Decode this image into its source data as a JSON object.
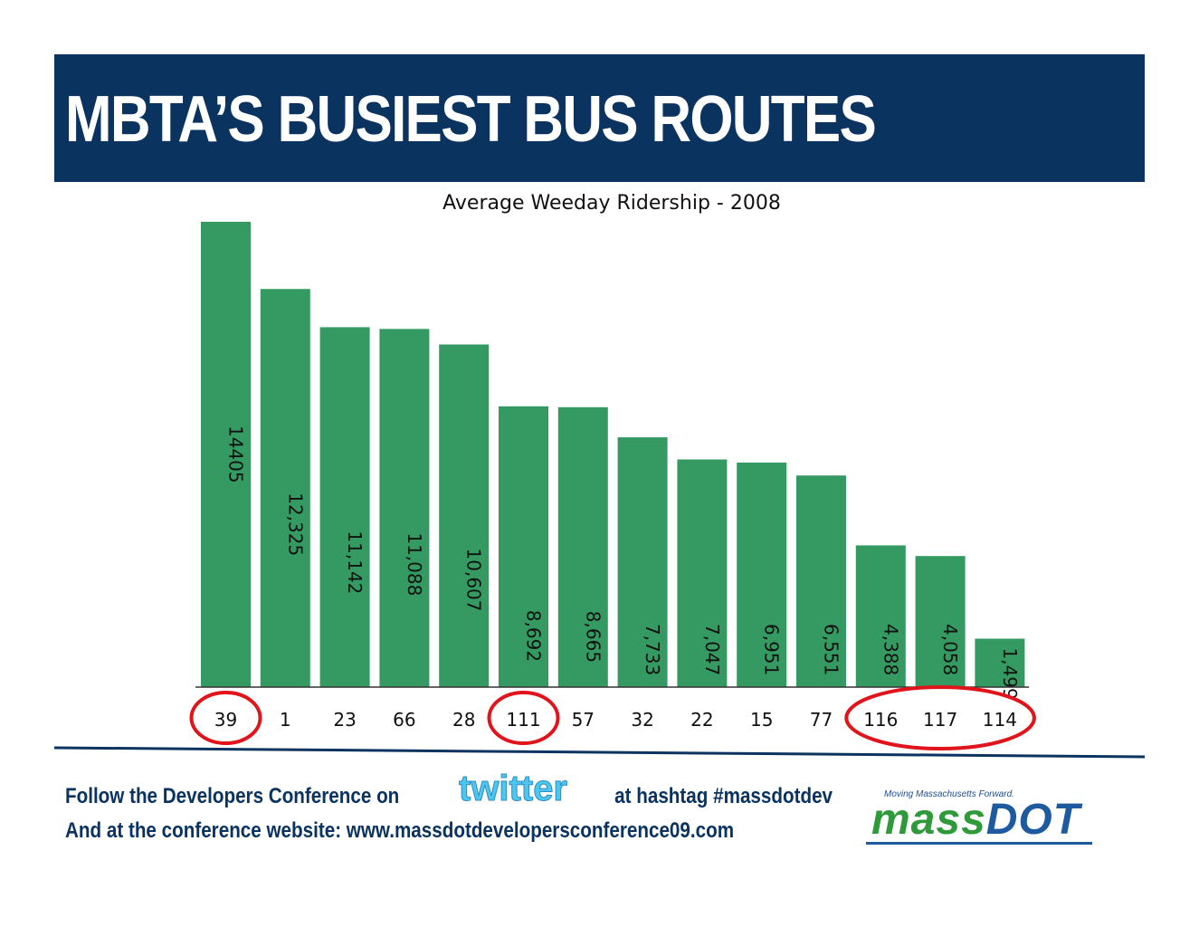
{
  "header": {
    "title": "MBTA’S BUSIEST BUS ROUTES"
  },
  "colors": {
    "header_bg": "#0b3360",
    "bar": "#349a62",
    "highlight": "#e0141a",
    "footer_text": "#0b3360"
  },
  "chart_data": {
    "type": "bar",
    "title": "Average Weeday Ridership - 2008",
    "xlabel": "",
    "ylabel": "",
    "categories": [
      "39",
      "1",
      "23",
      "66",
      "28",
      "111",
      "57",
      "32",
      "22",
      "15",
      "77",
      "116",
      "117",
      "114"
    ],
    "values": [
      14405,
      12325,
      11142,
      11088,
      10607,
      8692,
      8665,
      7733,
      7047,
      6951,
      6551,
      4388,
      4058,
      1499
    ],
    "value_labels": [
      "14405",
      "12,325",
      "11,142",
      "11,088",
      "10,607",
      "8,692",
      "8,665",
      "7,733",
      "7,047",
      "6,951",
      "6,551",
      "4,388",
      "4,058",
      "1,499"
    ],
    "ylim": [
      0,
      14405
    ],
    "grid": false,
    "highlighted_groups": [
      [
        "39"
      ],
      [
        "111"
      ],
      [
        "116",
        "117",
        "114"
      ]
    ]
  },
  "footer": {
    "line1_prefix": "Follow the Developers Conference on",
    "line1_suffix": "at hashtag #massdotdev",
    "line2": "And at the conference website: www.massdotdevelopersconference09.com",
    "twitter_logo_text": "twitter",
    "massdot_tagline": "Moving Massachusetts Forward.",
    "massdot_word_part1": "mass",
    "massdot_word_part2": "DOT"
  }
}
